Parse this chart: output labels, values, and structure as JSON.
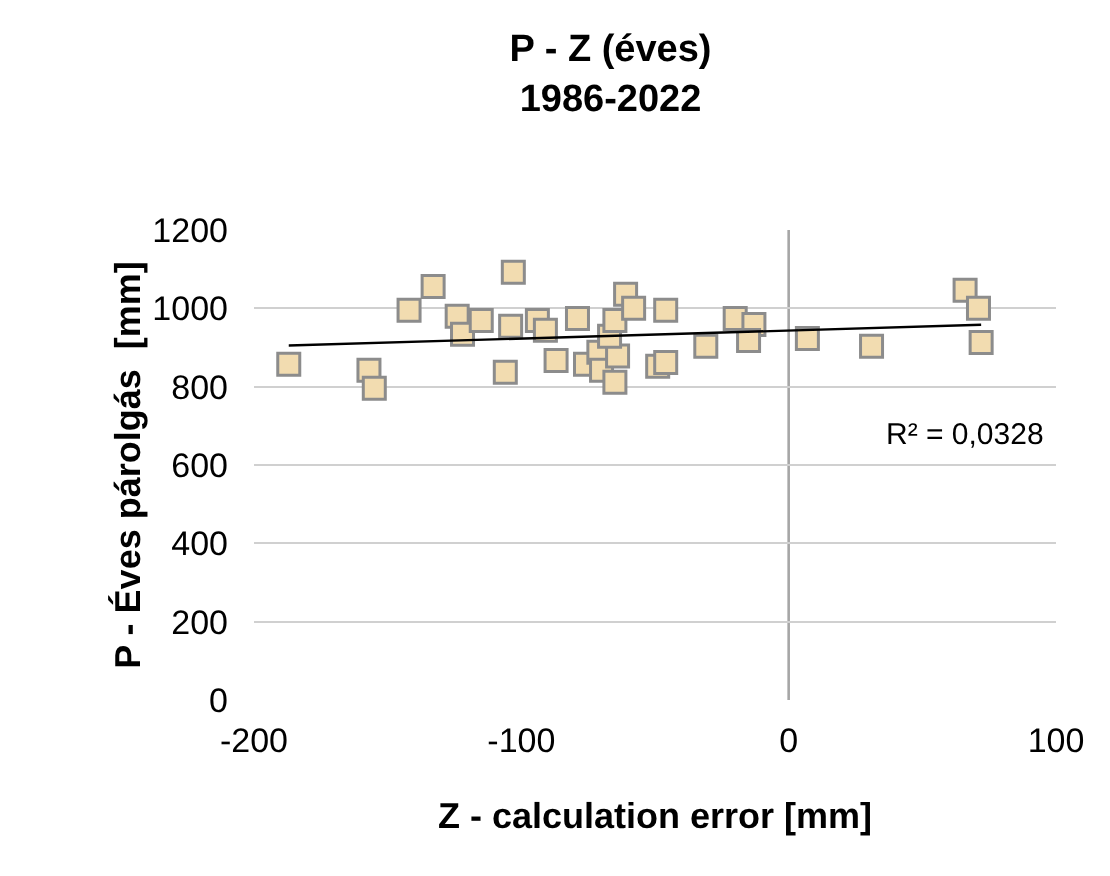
{
  "chart_data": {
    "type": "scatter",
    "title": "P - Z (éves)\n1986-2022",
    "xlabel": "Z - calculation error [mm]",
    "ylabel": "P - Éves párolgás  [mm]",
    "series": [
      {
        "color": "#f2dcb0",
        "marker": "square",
        "x": [
          -187,
          -157,
          -155,
          -142,
          -133,
          -124,
          -122,
          -115,
          -104,
          -103,
          -106,
          -94,
          -91,
          -87,
          -79,
          -76,
          -71,
          -70,
          -65,
          -64,
          -67,
          -65,
          -61,
          -58,
          -46,
          -49,
          -46,
          -31,
          -20,
          -13,
          -15,
          7,
          31,
          66,
          71,
          72
        ],
        "values": [
          857,
          842,
          796,
          995,
          1056,
          980,
          934,
          969,
          954,
          1092,
          837,
          969,
          944,
          867,
          974,
          857,
          888,
          842,
          811,
          878,
          929,
          969,
          1036,
          1000,
          995,
          852,
          862,
          903,
          974,
          959,
          918,
          923,
          903,
          1046,
          1000,
          913
        ]
      },
      {
        "type": "line",
        "color": "#000000",
        "marker": "none",
        "x": [
          -187,
          72
        ],
        "values": [
          905,
          958
        ]
      }
    ],
    "annotations": [
      "R² = 0,0328"
    ],
    "ref_lines": [
      {
        "axis": "x",
        "value": 0,
        "color": "#a6a6a6"
      }
    ],
    "xlim": [
      -200,
      100
    ],
    "xticks": [
      -200,
      -100,
      0,
      100
    ],
    "ylim": [
      0,
      1200
    ],
    "yticks": [
      0,
      200,
      400,
      600,
      800,
      1000,
      1200
    ],
    "grid": "y"
  }
}
